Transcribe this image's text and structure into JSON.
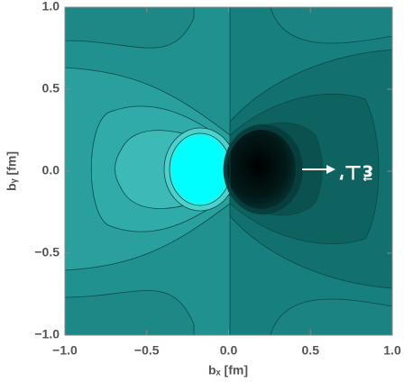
{
  "chart_data": {
    "type": "contour",
    "x_label": "bₓ [fm]",
    "y_label": "bᵧ [fm]",
    "annotation": "ε⃗⊥′",
    "xlim": [
      -1,
      1
    ],
    "ylim": [
      -1,
      1
    ],
    "xticks": [
      {
        "value": -1,
        "label": "−1.0"
      },
      {
        "value": -0.5,
        "label": "−0.5"
      },
      {
        "value": 0,
        "label": "0.0"
      },
      {
        "value": 0.5,
        "label": "0.5"
      },
      {
        "value": 1,
        "label": "1.0"
      }
    ],
    "yticks": [
      {
        "value": -1,
        "label": "−1.0"
      },
      {
        "value": -0.5,
        "label": "−0.5"
      },
      {
        "value": 0,
        "label": "0.0"
      },
      {
        "value": 0.5,
        "label": "0.5"
      },
      {
        "value": 1,
        "label": "1.0"
      }
    ]
  }
}
